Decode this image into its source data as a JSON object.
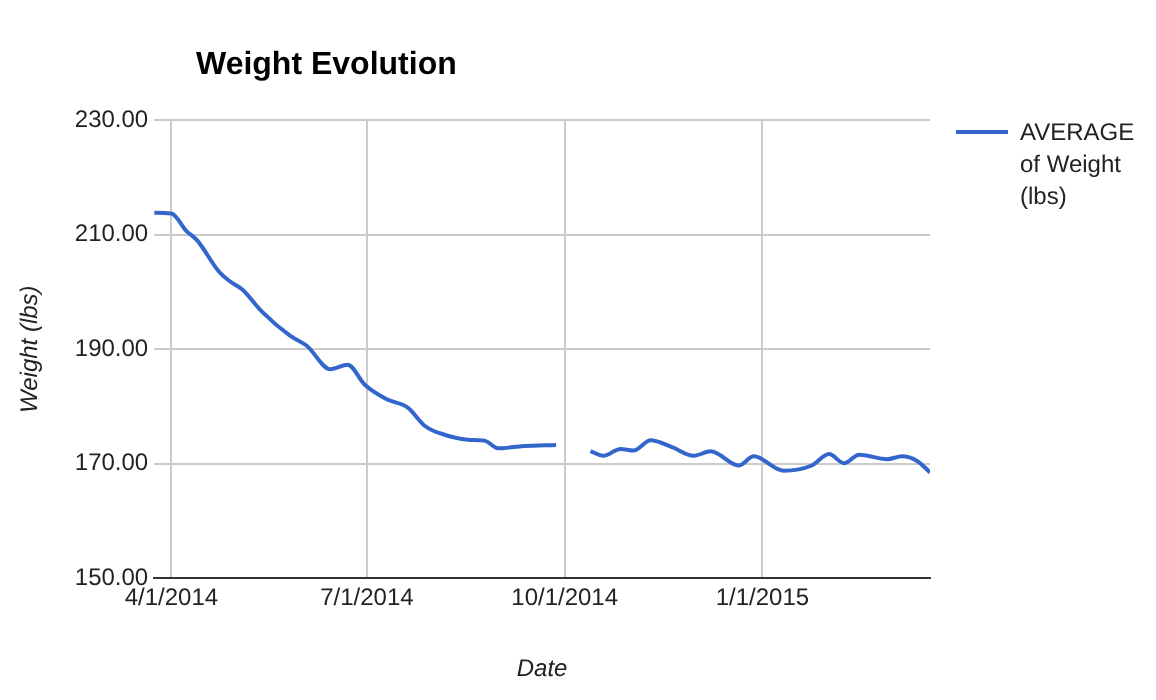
{
  "chart_data": {
    "type": "line",
    "title": "Weight Evolution",
    "xlabel": "Date",
    "ylabel": "Weight (lbs)",
    "x": [
      "2014-03-24",
      "2014-04-01",
      "2014-04-08",
      "2014-04-13",
      "2014-04-23",
      "2014-04-28",
      "2014-05-04",
      "2014-05-13",
      "2014-05-26",
      "2014-06-03",
      "2014-06-14",
      "2014-06-22",
      "2014-06-30",
      "2014-07-10",
      "2014-07-20",
      "2014-07-28",
      "2014-08-05",
      "2014-08-17",
      "2014-08-25",
      "2014-08-31",
      "2014-09-12",
      "2014-09-27",
      "2014-10-05",
      "2014-10-13",
      "2014-10-19",
      "2014-10-27",
      "2014-11-02",
      "2014-11-10",
      "2014-11-20",
      "2014-11-30",
      "2014-12-08",
      "2014-12-21",
      "2014-12-28",
      "2015-01-11",
      "2015-01-24",
      "2015-02-01",
      "2015-02-08",
      "2015-02-15",
      "2015-02-28",
      "2015-03-07",
      "2015-03-14",
      "2015-03-20"
    ],
    "series": [
      {
        "name": "AVERAGE of Weight (lbs)",
        "color": "#3366cc",
        "values": [
          213.8,
          213.7,
          210.6,
          209.0,
          203.6,
          201.9,
          200.4,
          196.6,
          192.4,
          190.6,
          186.5,
          187.3,
          183.8,
          181.3,
          179.8,
          176.6,
          175.2,
          174.2,
          174.0,
          172.7,
          173.1,
          173.3,
          null,
          172.2,
          171.4,
          172.6,
          172.3,
          174.1,
          172.9,
          171.4,
          172.2,
          169.7,
          171.3,
          168.8,
          169.7,
          171.7,
          170.1,
          171.6,
          170.8,
          171.3,
          170.5,
          168.5
        ]
      }
    ],
    "xlim": [
      "2014-03-24",
      "2015-03-20"
    ],
    "xticks": [
      {
        "value": "2014-04-01",
        "label": "4/1/2014"
      },
      {
        "value": "2014-07-01",
        "label": "7/1/2014"
      },
      {
        "value": "2014-10-01",
        "label": "10/1/2014"
      },
      {
        "value": "2015-01-01",
        "label": "1/1/2015"
      }
    ],
    "ylim": [
      150,
      230
    ],
    "yticks": [
      {
        "value": 150,
        "label": "150.00"
      },
      {
        "value": 170,
        "label": "170.00"
      },
      {
        "value": 190,
        "label": "190.00"
      },
      {
        "value": 210,
        "label": "210.00"
      },
      {
        "value": 230,
        "label": "230.00"
      }
    ],
    "grid": true,
    "legend": "right",
    "marker": "none",
    "line_style": "solid"
  }
}
